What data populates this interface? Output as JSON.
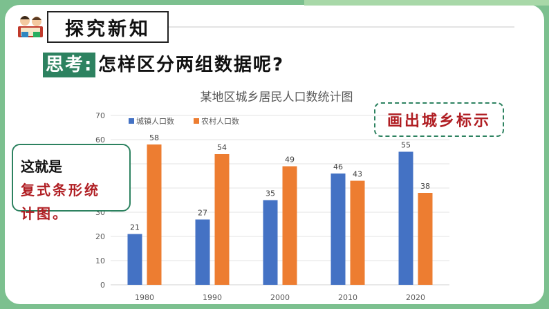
{
  "header": {
    "title": "探究新知"
  },
  "question": {
    "label": "思考:",
    "text": "怎样区分两组数据呢?"
  },
  "callout": {
    "line1": "这就是",
    "line2": "复式条形统",
    "line3": "计图。"
  },
  "annotation": {
    "text": "画出城乡标示"
  },
  "colors": {
    "urban": "#4472c4",
    "rural": "#ed7d31",
    "accent_green": "#2d8260",
    "accent_red": "#b01e23"
  },
  "chart_data": {
    "type": "bar",
    "title": "某地区城乡居民人口数统计图",
    "xlabel": "",
    "ylabel": "",
    "categories": [
      "1980",
      "1990",
      "2000",
      "2010",
      "2020"
    ],
    "series": [
      {
        "name": "城镇人口数",
        "values": [
          21,
          27,
          35,
          46,
          55
        ]
      },
      {
        "name": "农村人口数",
        "values": [
          58,
          54,
          49,
          43,
          38
        ]
      }
    ],
    "ylim": [
      0,
      70
    ],
    "yticks": [
      0,
      10,
      20,
      30,
      40,
      50,
      60,
      70
    ],
    "grid": true,
    "legend": "top-left",
    "data_labels": true
  }
}
